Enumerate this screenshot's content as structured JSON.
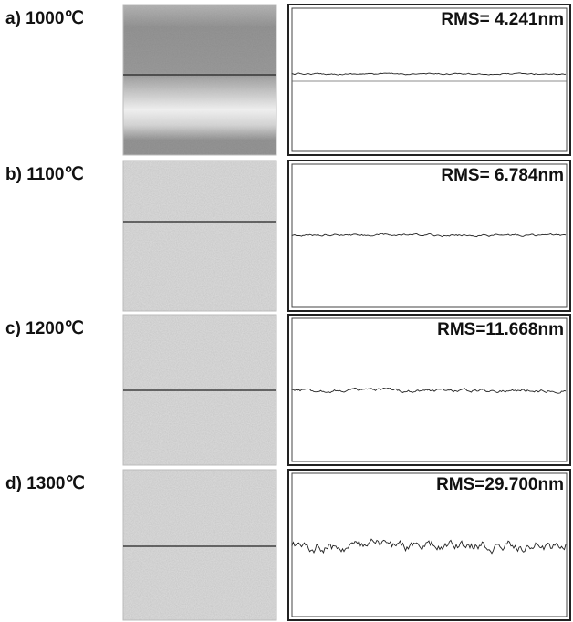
{
  "panels": [
    {
      "label": "a) 1000℃",
      "rms": "RMS= 4.241nm"
    },
    {
      "label": "b) 1100℃",
      "rms": "RMS= 6.784nm"
    },
    {
      "label": "c) 1200℃",
      "rms": "RMS=11.668nm"
    },
    {
      "label": "d) 1300℃",
      "rms": "RMS=29.700nm"
    }
  ]
}
